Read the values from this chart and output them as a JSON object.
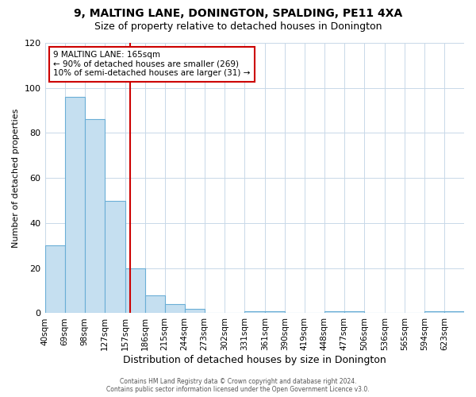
{
  "title": "9, MALTING LANE, DONINGTON, SPALDING, PE11 4XA",
  "subtitle": "Size of property relative to detached houses in Donington",
  "xlabel": "Distribution of detached houses by size in Donington",
  "ylabel": "Number of detached properties",
  "bar_labels": [
    "40sqm",
    "69sqm",
    "98sqm",
    "127sqm",
    "157sqm",
    "186sqm",
    "215sqm",
    "244sqm",
    "273sqm",
    "302sqm",
    "331sqm",
    "361sqm",
    "390sqm",
    "419sqm",
    "448sqm",
    "477sqm",
    "506sqm",
    "536sqm",
    "565sqm",
    "594sqm",
    "623sqm"
  ],
  "bar_values": [
    30,
    96,
    86,
    50,
    20,
    8,
    4,
    2,
    0,
    0,
    1,
    1,
    0,
    0,
    1,
    1,
    0,
    0,
    0,
    1,
    1
  ],
  "bin_edges": [
    40,
    69,
    98,
    127,
    157,
    186,
    215,
    244,
    273,
    302,
    331,
    361,
    390,
    419,
    448,
    477,
    506,
    536,
    565,
    594,
    623,
    652
  ],
  "bar_color": "#c5dff0",
  "bar_edge_color": "#6aaed6",
  "vline_x": 165,
  "vline_color": "#cc0000",
  "ylim": [
    0,
    120
  ],
  "annot_line1": "9 MALTING LANE: 165sqm",
  "annot_line2": "← 90% of detached houses are smaller (269)",
  "annot_line3": "10% of semi-detached houses are larger (31) →",
  "annotation_box_color": "#cc0000",
  "annotation_box_facecolor": "white",
  "footer_line1": "Contains HM Land Registry data © Crown copyright and database right 2024.",
  "footer_line2": "Contains public sector information licensed under the Open Government Licence v3.0.",
  "background_color": "#ffffff",
  "grid_color": "#c8d8e8",
  "title_fontsize": 10,
  "subtitle_fontsize": 9,
  "xlabel_fontsize": 9,
  "ylabel_fontsize": 8
}
